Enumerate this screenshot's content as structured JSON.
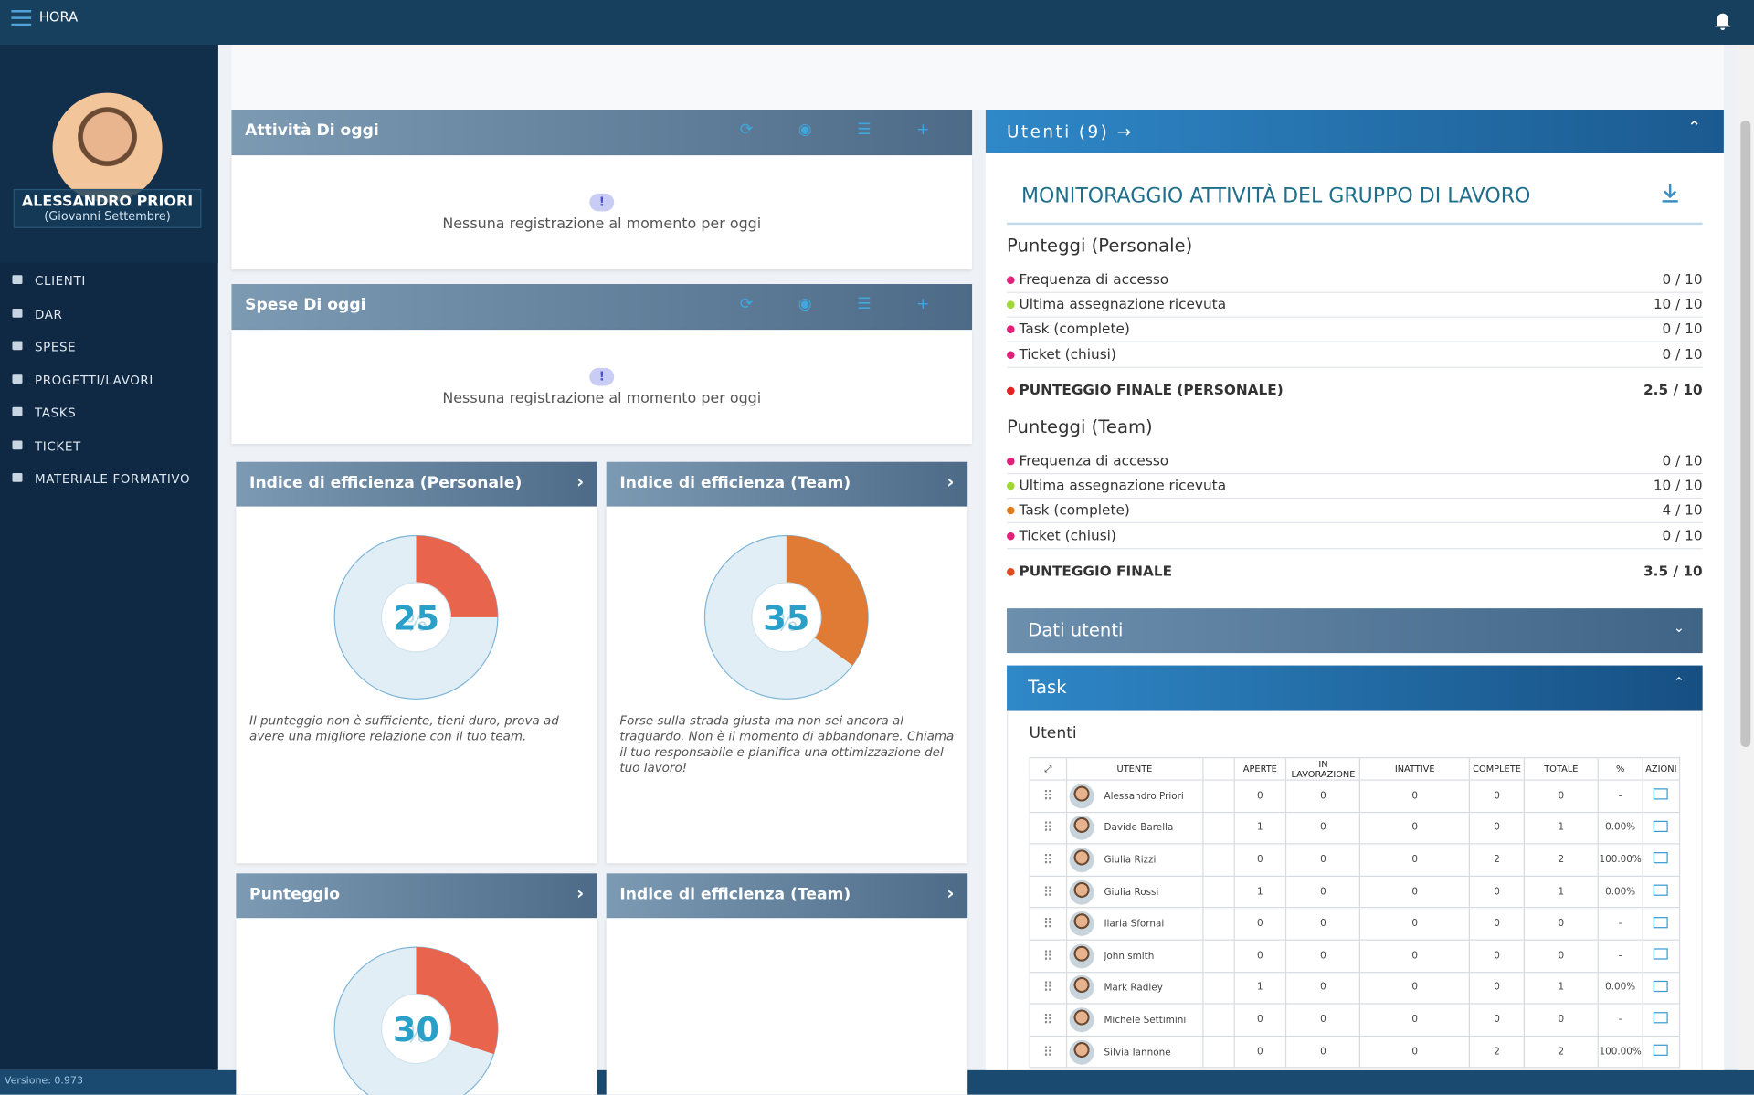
{
  "header": {
    "app": "HORA"
  },
  "sidebar": {
    "user_name": "ALESSANDRO PRIORI",
    "user_subtitle": "(Giovanni Settembre)",
    "menu": [
      "CLIENTI",
      "DAR",
      "SPESE",
      "PROGETTI/LAVORI",
      "TASKS",
      "TICKET",
      "MATERIALE FORMATIVO"
    ],
    "version": "Versione: 0.973"
  },
  "panels": [
    {
      "title": "Attività Di oggi",
      "icon": "!",
      "message": "Nessuna registrazione al momento per oggi"
    },
    {
      "title": "Spese Di oggi",
      "icon": "!",
      "message": "Nessuna registrazione al momento per oggi"
    }
  ],
  "gauges": [
    {
      "title": "Indice di efficienza (Personale)",
      "value": 25,
      "unit": "%",
      "color": "#e8644c",
      "note": "Il punteggio non è sufficiente, tieni duro, prova ad avere una migliore relazione con il tuo team."
    },
    {
      "title": "Indice di efficienza (Team)",
      "value": 35,
      "unit": "%",
      "color": "#e07b36",
      "note": "Forse sulla strada giusta ma non sei ancora al traguardo. Non è il momento di abbandonare. Chiama il tuo responsabile e pianifica una ottimizzazione del tuo lavoro!"
    },
    {
      "title": "Punteggio",
      "value": 30,
      "unit": "%",
      "color": "#e8644c"
    },
    {
      "title": "Indice di efficienza (Team)"
    }
  ],
  "users": {
    "title": "Utenti (9)",
    "heading": "MONITORAGGIO ATTIVITÀ DEL GRUPPO DI LAVORO",
    "sections": [
      {
        "title": "Punteggi (Personale)",
        "items": [
          {
            "label": "Frequenza di accesso",
            "score": "0 / 10",
            "color": "#e0207a"
          },
          {
            "label": "Ultima assegnazione ricevuta",
            "score": "10 / 10",
            "color": "#9ed836"
          },
          {
            "label": "Task (complete)",
            "score": "0 / 10",
            "color": "#e0207a"
          },
          {
            "label": "Ticket (chiusi)",
            "score": "0 / 10",
            "color": "#e0207a"
          }
        ],
        "final": {
          "label": "PUNTEGGIO FINALE (PERSONALE)",
          "score": "2.5 / 10",
          "color": "#e02424"
        }
      },
      {
        "title": "Punteggi (Team)",
        "items": [
          {
            "label": "Frequenza di accesso",
            "score": "0 / 10",
            "color": "#e0207a"
          },
          {
            "label": "Ultima assegnazione ricevuta",
            "score": "10 / 10",
            "color": "#9ed836"
          },
          {
            "label": "Task (complete)",
            "score": "4 / 10",
            "color": "#e07b1e"
          },
          {
            "label": "Ticket (chiusi)",
            "score": "0 / 10",
            "color": "#e0207a"
          }
        ],
        "final": {
          "label": "PUNTEGGIO FINALE",
          "score": "3.5 / 10",
          "color": "#e04a1e"
        }
      }
    ],
    "data_title": "Dati utenti",
    "task_title": "Task",
    "table_title": "Utenti",
    "table": {
      "columns": [
        "UTENTE",
        "APERTE",
        "IN LAVORAZIONE",
        "INATTIVE",
        "COMPLETE",
        "TOTALE",
        "%",
        "AZIONI"
      ],
      "rows": [
        [
          "Alessandro Priori",
          "0",
          "0",
          "0",
          "0",
          "0",
          "-"
        ],
        [
          "Davide Barella",
          "1",
          "0",
          "0",
          "0",
          "1",
          "0.00%"
        ],
        [
          "Giulia Rizzi",
          "0",
          "0",
          "0",
          "2",
          "2",
          "100.00%"
        ],
        [
          "Giulia Rossi",
          "1",
          "0",
          "0",
          "0",
          "1",
          "0.00%"
        ],
        [
          "Ilaria Sfornai",
          "0",
          "0",
          "0",
          "0",
          "0",
          "-"
        ],
        [
          "john smith",
          "0",
          "0",
          "0",
          "0",
          "0",
          "-"
        ],
        [
          "Mark Radley",
          "1",
          "0",
          "0",
          "0",
          "1",
          "0.00%"
        ],
        [
          "Michele Settimini",
          "0",
          "0",
          "0",
          "0",
          "0",
          "-"
        ],
        [
          "Silvia Iannone",
          "0",
          "0",
          "0",
          "2",
          "2",
          "100.00%"
        ]
      ]
    }
  }
}
